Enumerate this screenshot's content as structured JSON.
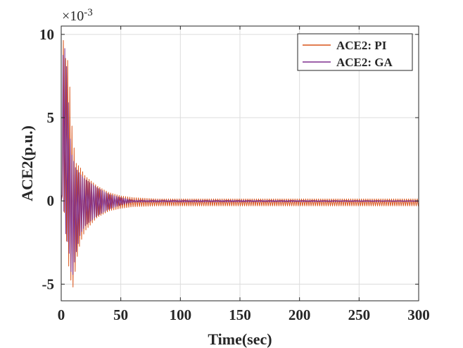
{
  "chart_data": {
    "type": "line",
    "xlabel": "Time(sec)",
    "ylabel": "ACE2(p.u.)",
    "y_exponent_label": "×10",
    "y_exponent_power": "-3",
    "xlim": [
      0,
      300
    ],
    "ylim": [
      -6,
      10.5
    ],
    "xticks": [
      0,
      50,
      100,
      150,
      200,
      250,
      300
    ],
    "yticks": [
      -5,
      0,
      5,
      10
    ],
    "xtick_labels": [
      "0",
      "50",
      "100",
      "150",
      "200",
      "250",
      "300"
    ],
    "ytick_labels": [
      "-5",
      "0",
      "5",
      "10"
    ],
    "grid": true,
    "legend_position": "top-right",
    "series": [
      {
        "name": "ACE2: PI",
        "color": "#d95319",
        "oscillation_period_sec": 1.8,
        "envelope_upper": [
          [
            0,
            0
          ],
          [
            1.5,
            9.9
          ],
          [
            3,
            8.6
          ],
          [
            6,
            8.4
          ],
          [
            9,
            4.5
          ],
          [
            12,
            2.3
          ],
          [
            16,
            2.0
          ],
          [
            20,
            1.5
          ],
          [
            30,
            0.9
          ],
          [
            40,
            0.5
          ],
          [
            50,
            0.3
          ],
          [
            60,
            0.2
          ],
          [
            80,
            0.12
          ],
          [
            300,
            0.12
          ]
        ],
        "envelope_lower": [
          [
            0,
            0
          ],
          [
            1.5,
            0.5
          ],
          [
            4,
            -2.0
          ],
          [
            7,
            -4.5
          ],
          [
            10,
            -5.2
          ],
          [
            13,
            -3.5
          ],
          [
            16,
            -2.5
          ],
          [
            20,
            -1.8
          ],
          [
            30,
            -1.0
          ],
          [
            40,
            -0.6
          ],
          [
            50,
            -0.45
          ],
          [
            60,
            -0.35
          ],
          [
            80,
            -0.3
          ],
          [
            300,
            -0.3
          ]
        ]
      },
      {
        "name": "ACE2: GA",
        "color": "#7e2f8e",
        "oscillation_period_sec": 1.5,
        "envelope_upper": [
          [
            0,
            0
          ],
          [
            1,
            8.0
          ],
          [
            2,
            9.5
          ],
          [
            4,
            8.8
          ],
          [
            8,
            3.0
          ],
          [
            12,
            2.0
          ],
          [
            16,
            1.6
          ],
          [
            20,
            1.3
          ],
          [
            30,
            0.8
          ],
          [
            40,
            0.4
          ],
          [
            50,
            0.2
          ],
          [
            60,
            0.05
          ],
          [
            300,
            0.02
          ]
        ],
        "envelope_lower": [
          [
            0,
            0
          ],
          [
            1,
            0.5
          ],
          [
            4,
            -2.2
          ],
          [
            6,
            -2.6
          ],
          [
            9,
            -4.8
          ],
          [
            12,
            -3.3
          ],
          [
            16,
            -2.0
          ],
          [
            20,
            -1.5
          ],
          [
            30,
            -0.9
          ],
          [
            40,
            -0.5
          ],
          [
            50,
            -0.25
          ],
          [
            60,
            -0.08
          ],
          [
            300,
            -0.04
          ]
        ]
      }
    ]
  }
}
